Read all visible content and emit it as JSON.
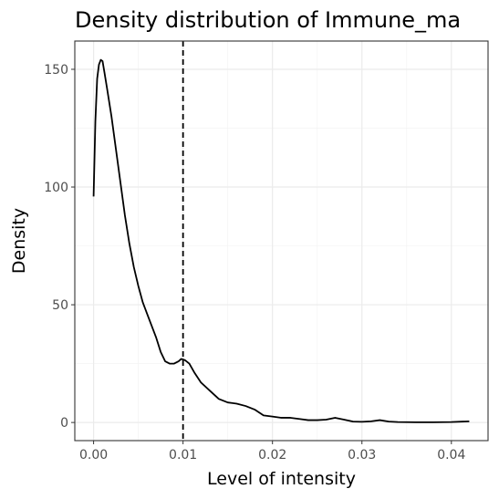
{
  "chart_data": {
    "type": "line",
    "title": "Density distribution of Immune_ma",
    "xlabel": "Level of intensity",
    "ylabel": "Density",
    "xlim": [
      -0.0021,
      0.0441
    ],
    "ylim": [
      -7.7,
      162
    ],
    "x_ticks": [
      0.0,
      0.01,
      0.02,
      0.03,
      0.04
    ],
    "x_tick_labels": [
      "0.00",
      "0.01",
      "0.02",
      "0.03",
      "0.04"
    ],
    "y_ticks": [
      0,
      50,
      100,
      150
    ],
    "y_tick_labels": [
      "0",
      "50",
      "100",
      "150"
    ],
    "grid": true,
    "vline": {
      "x": 0.01,
      "style": "dashed"
    },
    "series": [
      {
        "x": [
          0.0,
          0.0002,
          0.0004,
          0.0006,
          0.0008,
          0.001,
          0.0012,
          0.0015,
          0.002,
          0.0025,
          0.003,
          0.0035,
          0.004,
          0.0045,
          0.005,
          0.0055,
          0.006,
          0.0065,
          0.007,
          0.0075,
          0.008,
          0.0085,
          0.009,
          0.0095,
          0.0098,
          0.0102,
          0.0107,
          0.0113,
          0.012,
          0.013,
          0.014,
          0.015,
          0.016,
          0.017,
          0.018,
          0.019,
          0.02,
          0.021,
          0.022,
          0.023,
          0.024,
          0.025,
          0.026,
          0.027,
          0.028,
          0.029,
          0.03,
          0.031,
          0.032,
          0.033,
          0.034,
          0.036,
          0.038,
          0.04,
          0.042
        ],
        "y": [
          96,
          128,
          146,
          152,
          154,
          153.5,
          149,
          142,
          130,
          116,
          102,
          88,
          76,
          66,
          58,
          51,
          46,
          41,
          36,
          30,
          26,
          25,
          25,
          26,
          27,
          26.5,
          25,
          21,
          17,
          13.5,
          10,
          8.5,
          8,
          7,
          5.5,
          3,
          2.5,
          2,
          2,
          1.5,
          1,
          1,
          1.2,
          2,
          1.2,
          0.4,
          0.3,
          0.5,
          1,
          0.4,
          0.2,
          0.1,
          0.1,
          0.2,
          0.5
        ]
      }
    ]
  }
}
